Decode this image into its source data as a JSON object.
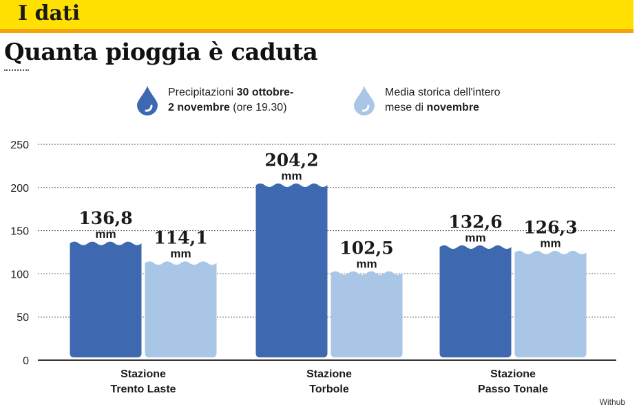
{
  "header": {
    "section": "I dati",
    "title": "Quanta pioggia è caduta"
  },
  "legend": [
    {
      "text_1": "Precipitazioni ",
      "bold_1": "30 ottobre-",
      "bold_2": "2 novembre",
      "text_2": " (ore 19.30)",
      "color": "#3e68b0",
      "icon": "drop-icon-dark"
    },
    {
      "text_1": "Media storica dell'intero",
      "text_2": "mese di ",
      "bold_2": "novembre",
      "color": "#a9c6e6",
      "icon": "drop-icon-light"
    }
  ],
  "chart_data": {
    "type": "bar",
    "categories": [
      [
        "Stazione",
        "Trento Laste"
      ],
      [
        "Stazione",
        "Torbole"
      ],
      [
        "Stazione",
        "Passo Tonale"
      ]
    ],
    "series": [
      {
        "values": [
          136.8,
          204.2,
          132.6
        ],
        "labels": [
          "136,8",
          "204,2",
          "132,6"
        ],
        "color": "#3e68b0"
      },
      {
        "values": [
          114.1,
          102.5,
          126.3
        ],
        "labels": [
          "114,1",
          "102,5",
          "126,3"
        ],
        "color": "#a9c6e6"
      }
    ],
    "unit": "mm",
    "yticks": [
      0,
      50,
      100,
      150,
      200,
      250
    ],
    "ylim": [
      0,
      250
    ],
    "grid": true
  },
  "credit": "Withub"
}
